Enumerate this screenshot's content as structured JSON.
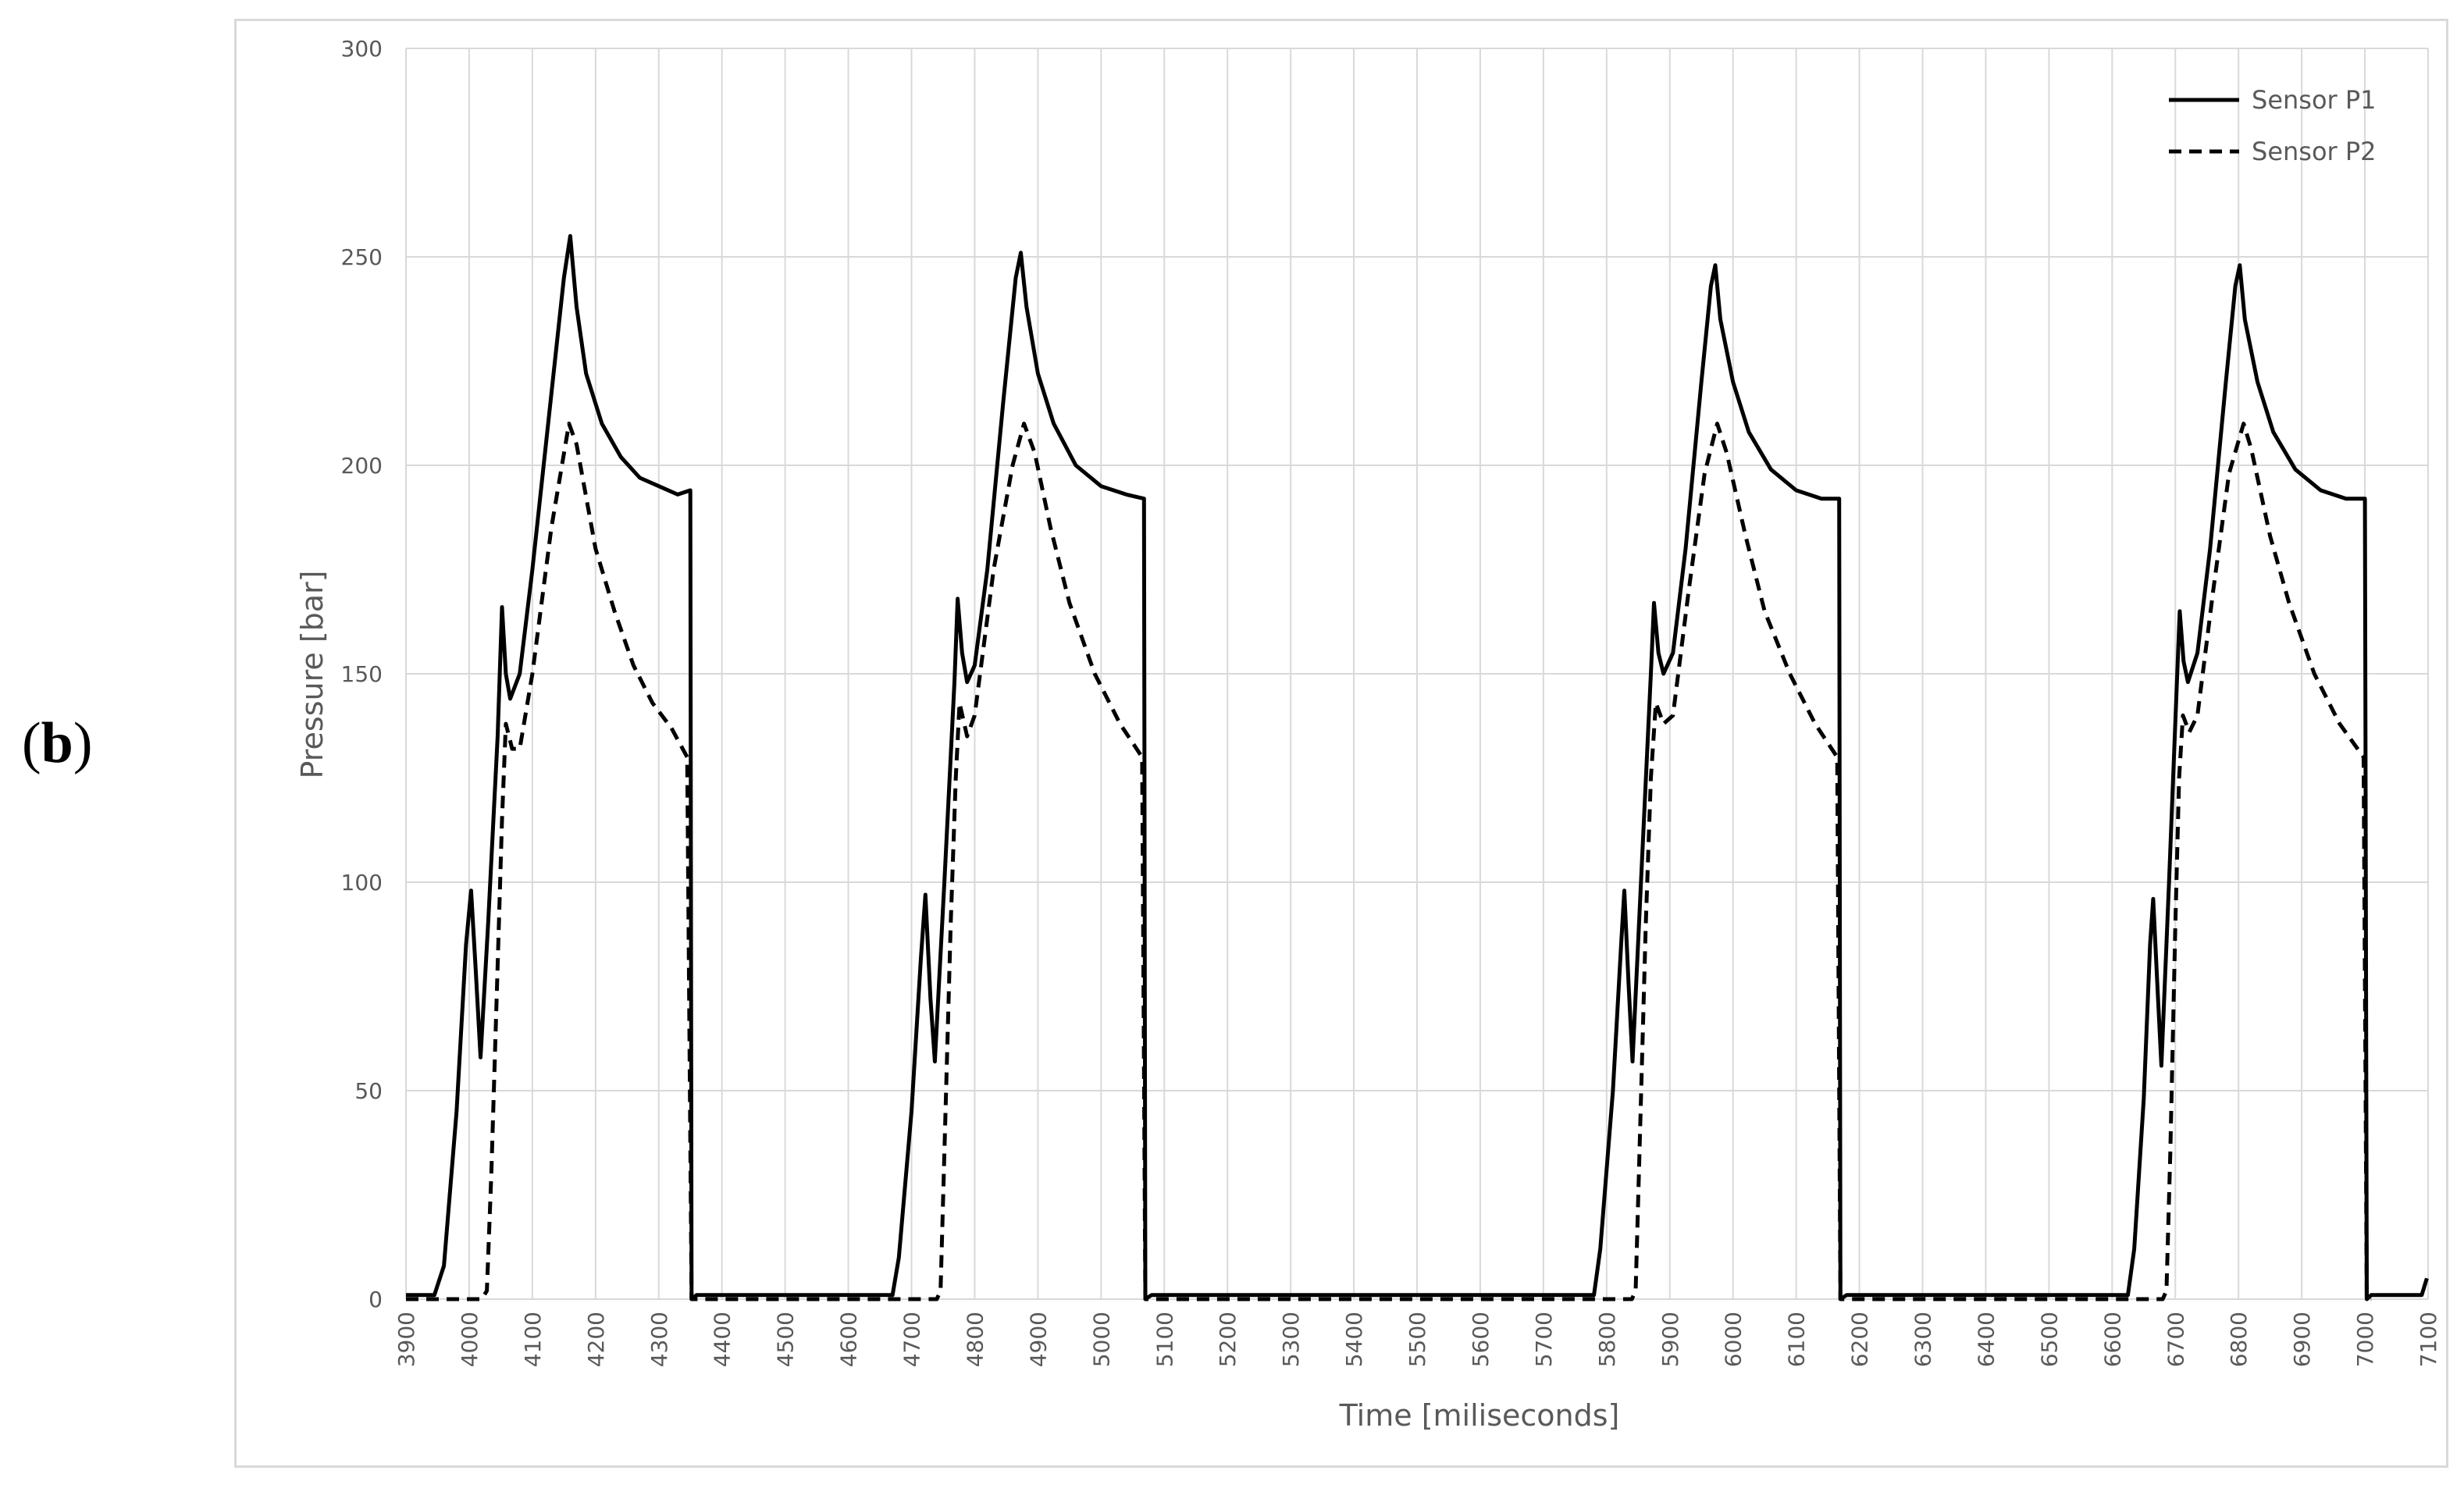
{
  "panel_label": "b",
  "chart_data": {
    "type": "line",
    "title": "",
    "xlabel": "Time [miliseconds]",
    "ylabel": "Pressure [bar]",
    "xlim": [
      3900,
      7100
    ],
    "ylim": [
      0,
      300
    ],
    "x_ticks": [
      3900,
      4000,
      4100,
      4200,
      4300,
      4400,
      4500,
      4600,
      4700,
      4800,
      4900,
      5000,
      5100,
      5200,
      5300,
      5400,
      5500,
      5600,
      5700,
      5800,
      5900,
      6000,
      6100,
      6200,
      6300,
      6400,
      6500,
      6600,
      6700,
      6800,
      6900,
      7000,
      7100
    ],
    "y_ticks": [
      0,
      50,
      100,
      150,
      200,
      250,
      300
    ],
    "grid": true,
    "legend_position": "top-right",
    "series": [
      {
        "name": "Sensor P1",
        "style": "solid",
        "color": "#000000",
        "points": [
          [
            3900,
            1
          ],
          [
            3945,
            1
          ],
          [
            3960,
            8
          ],
          [
            3980,
            45
          ],
          [
            3995,
            85
          ],
          [
            4003,
            98
          ],
          [
            4010,
            80
          ],
          [
            4018,
            58
          ],
          [
            4030,
            90
          ],
          [
            4045,
            135
          ],
          [
            4052,
            166
          ],
          [
            4058,
            150
          ],
          [
            4065,
            144
          ],
          [
            4080,
            150
          ],
          [
            4100,
            175
          ],
          [
            4125,
            210
          ],
          [
            4150,
            245
          ],
          [
            4160,
            255
          ],
          [
            4170,
            238
          ],
          [
            4185,
            222
          ],
          [
            4210,
            210
          ],
          [
            4240,
            202
          ],
          [
            4270,
            197
          ],
          [
            4300,
            195
          ],
          [
            4330,
            193
          ],
          [
            4350,
            194
          ],
          [
            4352,
            0
          ],
          [
            4360,
            1
          ],
          [
            4670,
            1
          ],
          [
            4680,
            10
          ],
          [
            4700,
            45
          ],
          [
            4715,
            82
          ],
          [
            4722,
            97
          ],
          [
            4730,
            72
          ],
          [
            4737,
            57
          ],
          [
            4752,
            100
          ],
          [
            4768,
            148
          ],
          [
            4773,
            168
          ],
          [
            4780,
            155
          ],
          [
            4788,
            148
          ],
          [
            4800,
            152
          ],
          [
            4820,
            175
          ],
          [
            4845,
            215
          ],
          [
            4865,
            245
          ],
          [
            4873,
            251
          ],
          [
            4882,
            238
          ],
          [
            4900,
            222
          ],
          [
            4925,
            210
          ],
          [
            4960,
            200
          ],
          [
            5000,
            195
          ],
          [
            5040,
            193
          ],
          [
            5068,
            192
          ],
          [
            5070,
            0
          ],
          [
            5080,
            1
          ],
          [
            5780,
            1
          ],
          [
            5790,
            12
          ],
          [
            5810,
            50
          ],
          [
            5823,
            85
          ],
          [
            5828,
            98
          ],
          [
            5835,
            75
          ],
          [
            5841,
            57
          ],
          [
            5856,
            105
          ],
          [
            5870,
            150
          ],
          [
            5875,
            167
          ],
          [
            5882,
            155
          ],
          [
            5890,
            150
          ],
          [
            5905,
            155
          ],
          [
            5925,
            180
          ],
          [
            5950,
            220
          ],
          [
            5965,
            243
          ],
          [
            5972,
            248
          ],
          [
            5980,
            235
          ],
          [
            6000,
            220
          ],
          [
            6025,
            208
          ],
          [
            6060,
            199
          ],
          [
            6100,
            194
          ],
          [
            6140,
            192
          ],
          [
            6168,
            192
          ],
          [
            6170,
            0
          ],
          [
            6180,
            1
          ],
          [
            6625,
            1
          ],
          [
            6635,
            12
          ],
          [
            6650,
            48
          ],
          [
            6660,
            85
          ],
          [
            6665,
            96
          ],
          [
            6672,
            74
          ],
          [
            6678,
            56
          ],
          [
            6690,
            100
          ],
          [
            6703,
            150
          ],
          [
            6707,
            165
          ],
          [
            6713,
            153
          ],
          [
            6720,
            148
          ],
          [
            6735,
            155
          ],
          [
            6755,
            180
          ],
          [
            6780,
            220
          ],
          [
            6795,
            243
          ],
          [
            6802,
            248
          ],
          [
            6810,
            235
          ],
          [
            6830,
            220
          ],
          [
            6855,
            208
          ],
          [
            6890,
            199
          ],
          [
            6930,
            194
          ],
          [
            6970,
            192
          ],
          [
            7000,
            192
          ],
          [
            7003,
            0
          ],
          [
            7010,
            1
          ],
          [
            7090,
            1
          ],
          [
            7098,
            5
          ]
        ]
      },
      {
        "name": "Sensor P2",
        "style": "dashed",
        "color": "#000000",
        "points": [
          [
            3900,
            0
          ],
          [
            4020,
            0
          ],
          [
            4028,
            2
          ],
          [
            4035,
            30
          ],
          [
            4045,
            80
          ],
          [
            4052,
            115
          ],
          [
            4058,
            138
          ],
          [
            4068,
            132
          ],
          [
            4080,
            132
          ],
          [
            4100,
            150
          ],
          [
            4130,
            185
          ],
          [
            4158,
            210
          ],
          [
            4170,
            205
          ],
          [
            4200,
            180
          ],
          [
            4230,
            165
          ],
          [
            4260,
            152
          ],
          [
            4290,
            143
          ],
          [
            4320,
            137
          ],
          [
            4345,
            130
          ],
          [
            4352,
            0
          ],
          [
            4360,
            0
          ],
          [
            4740,
            0
          ],
          [
            4746,
            2
          ],
          [
            4752,
            35
          ],
          [
            4762,
            90
          ],
          [
            4770,
            125
          ],
          [
            4776,
            143
          ],
          [
            4788,
            135
          ],
          [
            4800,
            140
          ],
          [
            4830,
            175
          ],
          [
            4860,
            200
          ],
          [
            4878,
            210
          ],
          [
            4895,
            203
          ],
          [
            4920,
            185
          ],
          [
            4950,
            167
          ],
          [
            4990,
            150
          ],
          [
            5030,
            138
          ],
          [
            5065,
            130
          ],
          [
            5070,
            0
          ],
          [
            5080,
            0
          ],
          [
            5840,
            0
          ],
          [
            5846,
            2
          ],
          [
            5852,
            35
          ],
          [
            5862,
            90
          ],
          [
            5870,
            125
          ],
          [
            5878,
            143
          ],
          [
            5890,
            138
          ],
          [
            5905,
            140
          ],
          [
            5930,
            170
          ],
          [
            5955,
            198
          ],
          [
            5975,
            210
          ],
          [
            5990,
            203
          ],
          [
            6020,
            183
          ],
          [
            6050,
            165
          ],
          [
            6090,
            150
          ],
          [
            6130,
            138
          ],
          [
            6165,
            130
          ],
          [
            6170,
            0
          ],
          [
            6180,
            0
          ],
          [
            6680,
            0
          ],
          [
            6686,
            2
          ],
          [
            6692,
            35
          ],
          [
            6700,
            90
          ],
          [
            6706,
            125
          ],
          [
            6712,
            140
          ],
          [
            6722,
            136
          ],
          [
            6735,
            140
          ],
          [
            6760,
            170
          ],
          [
            6785,
            198
          ],
          [
            6808,
            210
          ],
          [
            6820,
            204
          ],
          [
            6850,
            183
          ],
          [
            6880,
            167
          ],
          [
            6920,
            150
          ],
          [
            6960,
            138
          ],
          [
            6998,
            130
          ],
          [
            7003,
            0
          ],
          [
            7010,
            0
          ]
        ]
      }
    ]
  }
}
